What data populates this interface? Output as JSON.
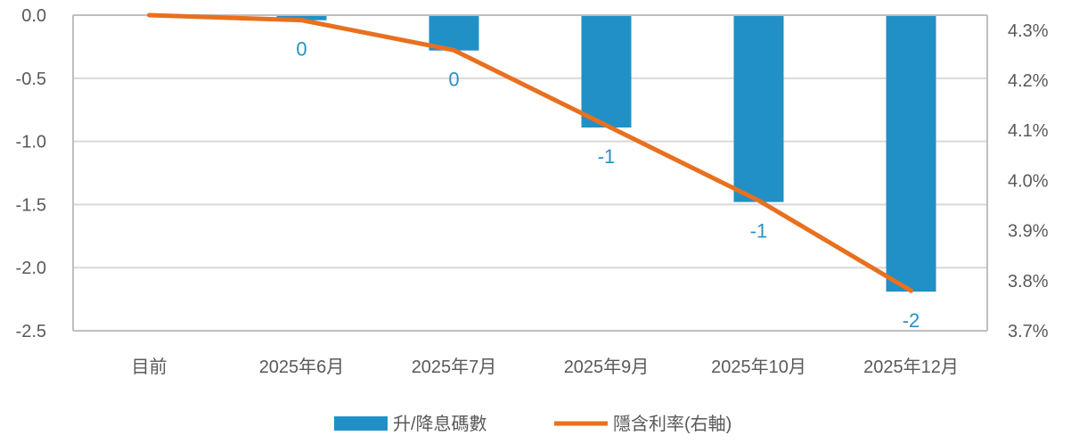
{
  "colors": {
    "bar": "#2190c6",
    "line": "#e8701f",
    "grid": "#d9d9d9",
    "axis": "#bfbfbf",
    "label": "#2990c6",
    "text": "#595959"
  },
  "chart_data": {
    "type": "bar",
    "title": "",
    "xlabel": "",
    "ylabel": "",
    "categories": [
      "目前",
      "2025年6月",
      "2025年7月",
      "2025年9月",
      "2025年10月",
      "2025年12月"
    ],
    "series": [
      {
        "name": "升/降息碼數",
        "type": "bar",
        "axis": "left",
        "values": [
          0,
          -0.04,
          -0.28,
          -0.89,
          -1.48,
          -2.19
        ],
        "labels": [
          "",
          "0",
          "0",
          "-1",
          "-1",
          "-2"
        ]
      },
      {
        "name": "隱含利率(右軸)",
        "type": "line",
        "axis": "right",
        "values": [
          4.33,
          4.32,
          4.26,
          4.11,
          3.96,
          3.78
        ]
      }
    ],
    "ylim_left": [
      -2.5,
      0
    ],
    "yticks_left": [
      "0.0",
      "-0.5",
      "-1.0",
      "-1.5",
      "-2.0",
      "-2.5"
    ],
    "ylim_right": [
      3.7,
      4.33
    ],
    "yticks_right": [
      "4.3%",
      "4.2%",
      "4.1%",
      "4.0%",
      "3.9%",
      "3.8%",
      "3.7%"
    ],
    "grid": true,
    "legend": "bottom"
  }
}
